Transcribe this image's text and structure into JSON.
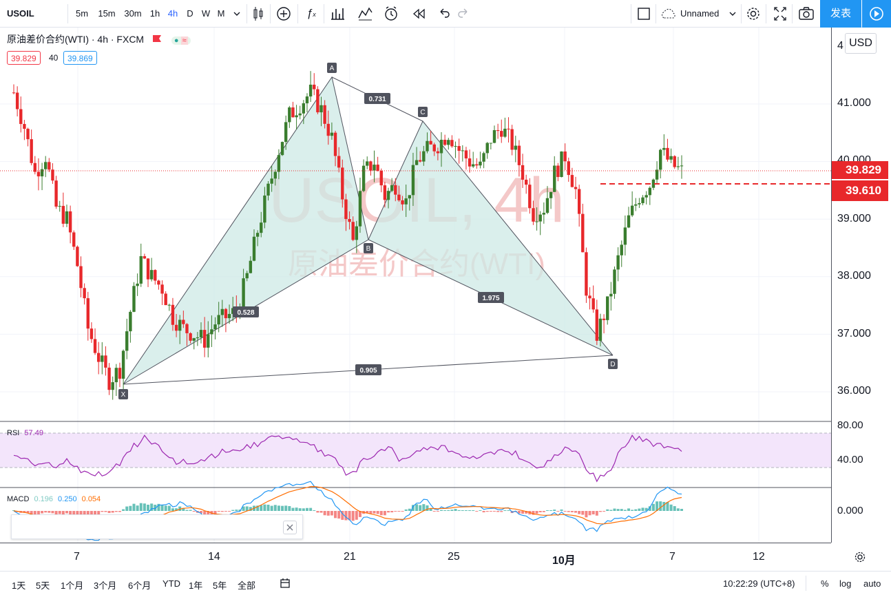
{
  "toolbar": {
    "symbol": "USOIL",
    "intervals": [
      "5m",
      "15m",
      "30m",
      "1h",
      "4h",
      "D",
      "W",
      "M"
    ],
    "active_interval": "4h",
    "layout_name": "Unnamed",
    "publish_label": "发表"
  },
  "legend": {
    "title": "原油差价合约(WTI) · 4h · FXCM",
    "bid": "39.829",
    "spread": "40",
    "ask": "39.869"
  },
  "watermark": {
    "line1": "USOIL, 4h",
    "line2": "原油差价合约(WTI)"
  },
  "price_scale": {
    "currency": "USD",
    "labels": [
      "41.000",
      "40.000",
      "39.000",
      "38.000",
      "37.000",
      "36.000"
    ],
    "current_price": "39.829",
    "order_price": "39.610",
    "top_partial": "4"
  },
  "pattern": {
    "points": [
      "X",
      "A",
      "B",
      "C",
      "D"
    ],
    "ratios": {
      "xb": "0.528",
      "ac": "0.731",
      "bd": "1.975",
      "xd": "0.905"
    }
  },
  "rsi": {
    "label": "RSI",
    "value": "57.49",
    "levels": [
      "80.00",
      "40.00"
    ]
  },
  "macd": {
    "label": "MACD",
    "hist": "0.196",
    "macd": "0.250",
    "signal": "0.054",
    "level": "0.000"
  },
  "time_axis": [
    "7",
    "14",
    "21",
    "25",
    "10月",
    "7",
    "12"
  ],
  "bottom_bar": {
    "ranges": [
      "1天",
      "5天",
      "1个月",
      "3个月",
      "6个月",
      "YTD",
      "1年",
      "5年",
      "全部"
    ],
    "clock": "10:22:29 (UTC+8)",
    "percent": "%",
    "log": "log",
    "auto": "auto"
  },
  "colors": {
    "up": "#3a7d2e",
    "down": "#e8282b",
    "accent": "#2196f3",
    "pattern_fill": "#cdeae6",
    "rsi_line": "#9c27b0",
    "rsi_band": "#f3e5fb"
  },
  "chart_data": {
    "type": "candlestick",
    "ylim": [
      35.5,
      42.2
    ],
    "closes": [
      41.2,
      40.6,
      39.8,
      40.1,
      39.2,
      39.0,
      38.2,
      37.1,
      36.6,
      36.2,
      36.4,
      37.4,
      38.3,
      38.0,
      37.8,
      37.3,
      37.1,
      37.0,
      36.9,
      37.2,
      37.3,
      37.4,
      38.0,
      38.8,
      39.5,
      40.2,
      40.8,
      41.0,
      41.2,
      40.9,
      40.4,
      39.4,
      38.6,
      39.8,
      40.0,
      39.4,
      39.6,
      39.3,
      40.0,
      40.2,
      40.3,
      40.5,
      40.2,
      40.0,
      39.9,
      40.4,
      40.6,
      40.3,
      39.8,
      39.1,
      39.2,
      39.8,
      40.1,
      39.5,
      37.8,
      37.0,
      37.5,
      38.3,
      39.0,
      39.4,
      39.6,
      40.2,
      39.95,
      39.83
    ]
  }
}
